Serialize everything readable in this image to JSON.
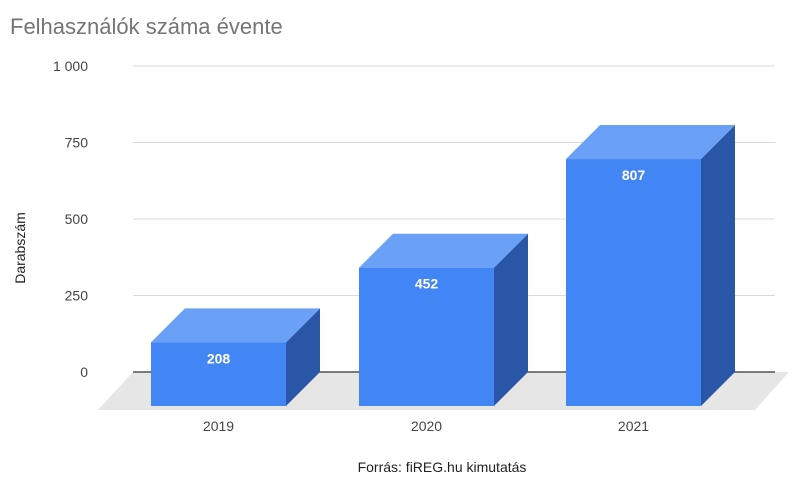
{
  "chart_data": {
    "type": "bar",
    "title": "Felhasználók száma évente",
    "ylabel": "Darabszám",
    "xlabel": "",
    "categories": [
      "2019",
      "2020",
      "2021"
    ],
    "values": [
      208,
      452,
      807
    ],
    "data_labels": [
      "208",
      "452",
      "807"
    ],
    "ylim": [
      0,
      1000
    ],
    "yticks": [
      0,
      250,
      500,
      750,
      1000
    ],
    "ytick_labels": [
      "0",
      "250",
      "500",
      "750",
      "1 000"
    ],
    "grid": true,
    "legend": "none",
    "style": "3d",
    "colors": {
      "bar_front": "#4285f4",
      "bar_top": "#6aa1f6",
      "bar_side": "#2a56a8",
      "floor": "#e6e6e6",
      "grid": "#d9d9d9",
      "baseline": "#333333"
    }
  },
  "footer": {
    "source": "Forrás: fiREG.hu kimutatás"
  }
}
